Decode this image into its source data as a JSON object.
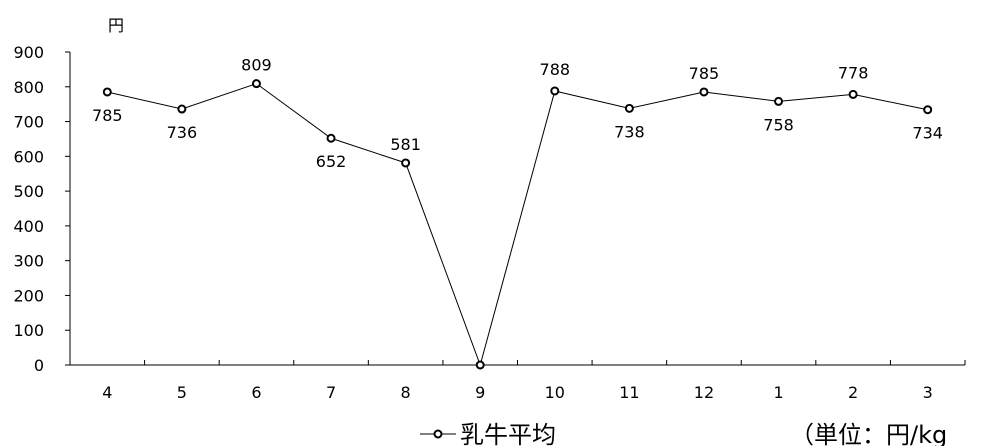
{
  "chart_data": {
    "type": "line",
    "title": "",
    "xlabel": "",
    "ylabel": "円",
    "ylim": [
      0,
      900
    ],
    "yticks": [
      0,
      100,
      200,
      300,
      400,
      500,
      600,
      700,
      800,
      900
    ],
    "categories": [
      "4",
      "5",
      "6",
      "7",
      "8",
      "9",
      "10",
      "11",
      "12",
      "1",
      "2",
      "3"
    ],
    "series": [
      {
        "name": "乳牛平均",
        "values": [
          785,
          736,
          809,
          652,
          581,
          0,
          788,
          738,
          785,
          758,
          778,
          734
        ],
        "data_labels": [
          "785",
          "736",
          "809",
          "652",
          "581",
          "",
          "788",
          "738",
          "785",
          "758",
          "778",
          "734"
        ],
        "color": "#000000",
        "marker": "open-circle"
      }
    ],
    "legend": "bottom-center",
    "grid": false,
    "unit_note": "（単位：円/kg"
  }
}
